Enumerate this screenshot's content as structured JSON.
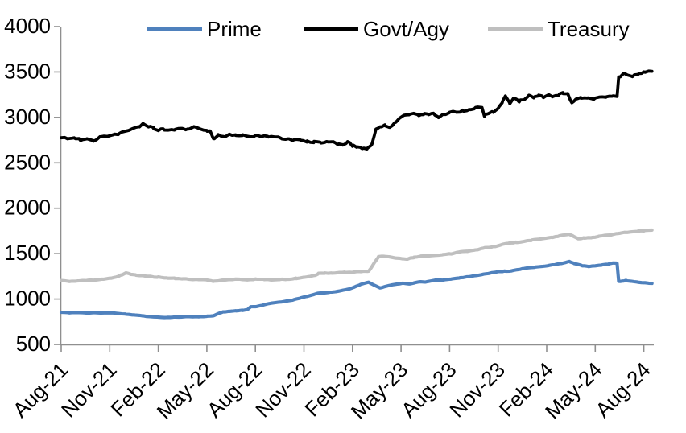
{
  "page": {
    "background": "#ffffff"
  },
  "legend": {
    "position": "top",
    "items": [
      {
        "label": "Prime"
      },
      {
        "label": "Govt/Agy"
      },
      {
        "label": "Treasury"
      }
    ]
  },
  "chart_data": {
    "type": "line",
    "title": "",
    "xlabel": "",
    "ylabel": "",
    "grid": false,
    "legend_position": "top",
    "axis_color": "#8f8f8f",
    "text_color": "#000000",
    "ylim": [
      500,
      4000
    ],
    "yticks": [
      "4000",
      "3500",
      "3000",
      "2500",
      "2000",
      "1500",
      "1000",
      "500"
    ],
    "categories": [
      "Aug-21",
      "Nov-21",
      "Feb-22",
      "May-22",
      "Aug-22",
      "Nov-22",
      "Feb-23",
      "May-23",
      "Aug-23",
      "Nov-23",
      "Feb-24",
      "May-24",
      "Aug-24"
    ],
    "x_unit": "months since Aug-21, tick every 3 months",
    "series": [
      {
        "name": "Prime",
        "color": "#4f81bd",
        "noise": 2,
        "points": [
          [
            0,
            855
          ],
          [
            0.5,
            848
          ],
          [
            1,
            852
          ],
          [
            1.5,
            845
          ],
          [
            2,
            850
          ],
          [
            2.5,
            844
          ],
          [
            3,
            848
          ],
          [
            3.5,
            840
          ],
          [
            4,
            833
          ],
          [
            4.5,
            824
          ],
          [
            5,
            815
          ],
          [
            5.5,
            806
          ],
          [
            6,
            799
          ],
          [
            6.5,
            796
          ],
          [
            7,
            800
          ],
          [
            7.5,
            803
          ],
          [
            8,
            806
          ],
          [
            8.5,
            804
          ],
          [
            9,
            810
          ],
          [
            9.4,
            815
          ],
          [
            9.8,
            845
          ],
          [
            10,
            857
          ],
          [
            10.4,
            864
          ],
          [
            10.8,
            870
          ],
          [
            11.2,
            875
          ],
          [
            11.5,
            882
          ],
          [
            11.7,
            912
          ],
          [
            12,
            916
          ],
          [
            12.4,
            930
          ],
          [
            12.8,
            948
          ],
          [
            13.2,
            958
          ],
          [
            13.6,
            968
          ],
          [
            14,
            980
          ],
          [
            14.4,
            992
          ],
          [
            14.8,
            1012
          ],
          [
            15.2,
            1030
          ],
          [
            15.6,
            1048
          ],
          [
            15.8,
            1062
          ],
          [
            16.2,
            1068
          ],
          [
            16.6,
            1074
          ],
          [
            17,
            1080
          ],
          [
            17.4,
            1095
          ],
          [
            17.8,
            1112
          ],
          [
            18.1,
            1130
          ],
          [
            18.4,
            1152
          ],
          [
            18.7,
            1172
          ],
          [
            19,
            1185
          ],
          [
            19.3,
            1155
          ],
          [
            19.7,
            1122
          ],
          [
            20,
            1135
          ],
          [
            20.3,
            1150
          ],
          [
            20.7,
            1162
          ],
          [
            21.1,
            1172
          ],
          [
            21.5,
            1166
          ],
          [
            21.8,
            1176
          ],
          [
            22.1,
            1190
          ],
          [
            22.5,
            1186
          ],
          [
            23.1,
            1208
          ],
          [
            23.5,
            1205
          ],
          [
            24.1,
            1220
          ],
          [
            24.6,
            1232
          ],
          [
            25.1,
            1243
          ],
          [
            25.6,
            1256
          ],
          [
            26.1,
            1272
          ],
          [
            26.6,
            1288
          ],
          [
            27,
            1300
          ],
          [
            27.4,
            1305
          ],
          [
            27.8,
            1308
          ],
          [
            28.1,
            1320
          ],
          [
            28.5,
            1332
          ],
          [
            28.9,
            1342
          ],
          [
            29.3,
            1350
          ],
          [
            29.7,
            1358
          ],
          [
            30.1,
            1368
          ],
          [
            30.5,
            1378
          ],
          [
            30.9,
            1390
          ],
          [
            31.15,
            1402
          ],
          [
            31.4,
            1412
          ],
          [
            31.7,
            1390
          ],
          [
            32.2,
            1366
          ],
          [
            32.6,
            1358
          ],
          [
            33,
            1366
          ],
          [
            33.4,
            1374
          ],
          [
            33.8,
            1384
          ],
          [
            34.1,
            1396
          ],
          [
            34.35,
            1394
          ],
          [
            34.45,
            1193
          ],
          [
            34.7,
            1197
          ],
          [
            34.9,
            1203
          ],
          [
            35.2,
            1194
          ],
          [
            35.6,
            1186
          ],
          [
            36,
            1178
          ],
          [
            36.5,
            1171
          ]
        ]
      },
      {
        "name": "Govt/Agy",
        "color": "#000000",
        "noise": 10,
        "points": [
          [
            0,
            2780
          ],
          [
            0.4,
            2755
          ],
          [
            0.8,
            2775
          ],
          [
            1.2,
            2750
          ],
          [
            1.6,
            2765
          ],
          [
            2,
            2745
          ],
          [
            2.4,
            2775
          ],
          [
            2.8,
            2790
          ],
          [
            3.2,
            2800
          ],
          [
            3.6,
            2820
          ],
          [
            4,
            2845
          ],
          [
            4.4,
            2870
          ],
          [
            4.8,
            2890
          ],
          [
            5.1,
            2928
          ],
          [
            5.4,
            2900
          ],
          [
            5.7,
            2880
          ],
          [
            6,
            2850
          ],
          [
            6.3,
            2870
          ],
          [
            6.6,
            2855
          ],
          [
            7,
            2865
          ],
          [
            7.4,
            2885
          ],
          [
            7.8,
            2865
          ],
          [
            8.2,
            2890
          ],
          [
            8.6,
            2875
          ],
          [
            9,
            2855
          ],
          [
            9.2,
            2845
          ],
          [
            9.4,
            2762
          ],
          [
            9.7,
            2805
          ],
          [
            10,
            2782
          ],
          [
            10.4,
            2808
          ],
          [
            10.8,
            2795
          ],
          [
            11.2,
            2805
          ],
          [
            11.6,
            2790
          ],
          [
            12,
            2795
          ],
          [
            12.4,
            2783
          ],
          [
            12.8,
            2790
          ],
          [
            13.2,
            2775
          ],
          [
            13.6,
            2770
          ],
          [
            14,
            2762
          ],
          [
            14.4,
            2748
          ],
          [
            14.8,
            2742
          ],
          [
            15.2,
            2730
          ],
          [
            15.6,
            2728
          ],
          [
            16,
            2718
          ],
          [
            16.4,
            2735
          ],
          [
            16.8,
            2728
          ],
          [
            17.1,
            2705
          ],
          [
            17.4,
            2695
          ],
          [
            17.7,
            2730
          ],
          [
            18,
            2685
          ],
          [
            18.3,
            2668
          ],
          [
            18.6,
            2655
          ],
          [
            18.9,
            2650
          ],
          [
            19.2,
            2705
          ],
          [
            19.45,
            2862
          ],
          [
            19.7,
            2895
          ],
          [
            20,
            2912
          ],
          [
            20.3,
            2890
          ],
          [
            20.6,
            2935
          ],
          [
            20.9,
            2985
          ],
          [
            21.2,
            3015
          ],
          [
            21.5,
            3020
          ],
          [
            21.8,
            3035
          ],
          [
            22.1,
            3020
          ],
          [
            22.4,
            3035
          ],
          [
            22.7,
            3025
          ],
          [
            23,
            3040
          ],
          [
            23.3,
            2992
          ],
          [
            23.6,
            3022
          ],
          [
            24,
            3050
          ],
          [
            24.4,
            3058
          ],
          [
            24.8,
            3068
          ],
          [
            25.2,
            3085
          ],
          [
            25.6,
            3098
          ],
          [
            26,
            3110
          ],
          [
            26.15,
            3015
          ],
          [
            26.4,
            3035
          ],
          [
            26.7,
            3060
          ],
          [
            27,
            3090
          ],
          [
            27.25,
            3160
          ],
          [
            27.45,
            3240
          ],
          [
            27.7,
            3152
          ],
          [
            28,
            3210
          ],
          [
            28.3,
            3172
          ],
          [
            28.6,
            3200
          ],
          [
            28.9,
            3240
          ],
          [
            29.2,
            3212
          ],
          [
            29.5,
            3232
          ],
          [
            29.8,
            3222
          ],
          [
            30.1,
            3242
          ],
          [
            30.4,
            3222
          ],
          [
            30.7,
            3242
          ],
          [
            31,
            3268
          ],
          [
            31.3,
            3252
          ],
          [
            31.55,
            3155
          ],
          [
            31.8,
            3195
          ],
          [
            32.1,
            3215
          ],
          [
            32.5,
            3210
          ],
          [
            32.9,
            3200
          ],
          [
            33.3,
            3212
          ],
          [
            33.7,
            3222
          ],
          [
            34.05,
            3228
          ],
          [
            34.35,
            3232
          ],
          [
            34.45,
            3435
          ],
          [
            34.8,
            3482
          ],
          [
            35.3,
            3450
          ],
          [
            35.7,
            3475
          ],
          [
            36,
            3490
          ],
          [
            36.3,
            3505
          ],
          [
            36.5,
            3512
          ]
        ]
      },
      {
        "name": "Treasury",
        "color": "#bfbfbf",
        "noise": 3.5,
        "points": [
          [
            0,
            1200
          ],
          [
            0.5,
            1193
          ],
          [
            1,
            1198
          ],
          [
            1.5,
            1203
          ],
          [
            2,
            1208
          ],
          [
            2.5,
            1216
          ],
          [
            3,
            1226
          ],
          [
            3.4,
            1240
          ],
          [
            3.7,
            1262
          ],
          [
            4,
            1285
          ],
          [
            4.3,
            1272
          ],
          [
            4.6,
            1262
          ],
          [
            5,
            1255
          ],
          [
            5.5,
            1247
          ],
          [
            6,
            1240
          ],
          [
            6.5,
            1232
          ],
          [
            7,
            1227
          ],
          [
            7.5,
            1221
          ],
          [
            8,
            1217
          ],
          [
            8.5,
            1212
          ],
          [
            9,
            1209
          ],
          [
            9.4,
            1196
          ],
          [
            9.8,
            1204
          ],
          [
            10.2,
            1211
          ],
          [
            10.6,
            1214
          ],
          [
            11,
            1216
          ],
          [
            11.5,
            1211
          ],
          [
            12,
            1217
          ],
          [
            12.5,
            1214
          ],
          [
            13,
            1211
          ],
          [
            13.5,
            1213
          ],
          [
            14,
            1217
          ],
          [
            14.5,
            1226
          ],
          [
            15,
            1237
          ],
          [
            15.4,
            1247
          ],
          [
            15.7,
            1262
          ],
          [
            15.9,
            1280
          ],
          [
            16.3,
            1283
          ],
          [
            16.7,
            1286
          ],
          [
            17.1,
            1290
          ],
          [
            17.5,
            1292
          ],
          [
            18,
            1295
          ],
          [
            18.5,
            1300
          ],
          [
            19,
            1305
          ],
          [
            19.6,
            1462
          ],
          [
            19.9,
            1470
          ],
          [
            20.3,
            1462
          ],
          [
            20.7,
            1450
          ],
          [
            21.1,
            1442
          ],
          [
            21.4,
            1440
          ],
          [
            21.8,
            1458
          ],
          [
            22.2,
            1468
          ],
          [
            22.6,
            1474
          ],
          [
            23.1,
            1480
          ],
          [
            23.6,
            1488
          ],
          [
            24.1,
            1498
          ],
          [
            24.6,
            1515
          ],
          [
            25.1,
            1525
          ],
          [
            25.6,
            1538
          ],
          [
            26.1,
            1560
          ],
          [
            26.6,
            1572
          ],
          [
            27.1,
            1590
          ],
          [
            27.6,
            1612
          ],
          [
            28.1,
            1622
          ],
          [
            28.6,
            1632
          ],
          [
            29.1,
            1648
          ],
          [
            29.5,
            1655
          ],
          [
            29.9,
            1665
          ],
          [
            30.3,
            1675
          ],
          [
            30.7,
            1690
          ],
          [
            31,
            1700
          ],
          [
            31.35,
            1715
          ],
          [
            31.6,
            1698
          ],
          [
            31.95,
            1660
          ],
          [
            32.3,
            1670
          ],
          [
            32.8,
            1676
          ],
          [
            33.2,
            1688
          ],
          [
            33.6,
            1698
          ],
          [
            34,
            1708
          ],
          [
            34.4,
            1720
          ],
          [
            34.8,
            1730
          ],
          [
            35.2,
            1738
          ],
          [
            35.6,
            1745
          ],
          [
            36,
            1750
          ],
          [
            36.5,
            1756
          ]
        ]
      }
    ]
  }
}
